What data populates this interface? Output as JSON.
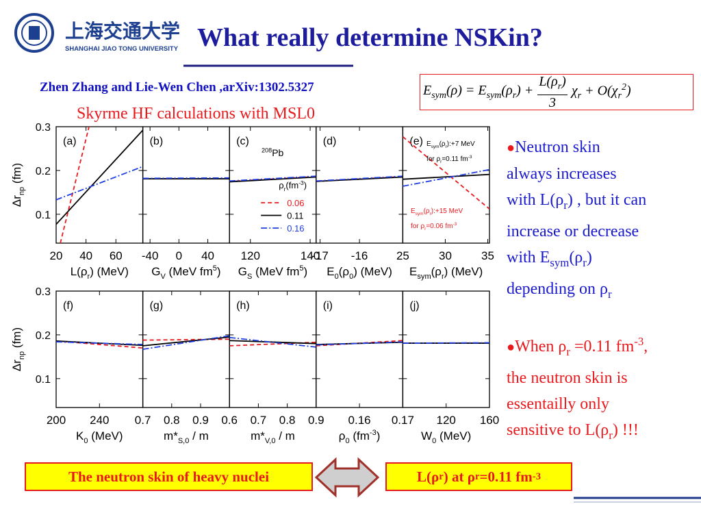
{
  "header": {
    "university_cn": "上海交通大学",
    "university_en": "SHANGHAI JIAO TONG UNIVERSITY",
    "title": "What really determine NSKin?"
  },
  "citation": "Zhen Zhang and Lie-Wen Chen ,arXiv:1302.5327",
  "equation": {
    "left": [
      {
        "text": "E"
      },
      {
        "text": "sym",
        "script": "sub"
      },
      {
        "text": "(ρ) = E"
      },
      {
        "text": "sym",
        "script": "sub"
      },
      {
        "text": "(ρ"
      },
      {
        "text": "r",
        "script": "sub"
      },
      {
        "text": ") +"
      }
    ],
    "fraction": {
      "numerator": [
        {
          "text": "L(ρ"
        },
        {
          "text": "r",
          "script": "sub"
        },
        {
          "text": ")"
        }
      ],
      "denominator": "3"
    },
    "right": [
      {
        "text": "χ"
      },
      {
        "text": "r",
        "script": "sub"
      },
      {
        "text": " + O(χ"
      },
      {
        "text": "r",
        "script": "sub"
      },
      {
        "text": "2",
        "script": "sup"
      },
      {
        "text": ")"
      }
    ]
  },
  "subtitle": "Skyrme HF calculations with MSL0",
  "chart_data": [
    {
      "type": "line",
      "panel_label": "(a)",
      "ylabel": [
        {
          "text": "Δr"
        },
        {
          "text": "np",
          "script": "sub"
        },
        {
          "text": " (fm)"
        }
      ],
      "xlabel": [
        {
          "text": "L(ρ"
        },
        {
          "text": "r",
          "script": "sub"
        },
        {
          "text": ") (MeV)"
        }
      ],
      "xlim": [
        20,
        78
      ],
      "xticks": [
        20,
        40,
        60
      ],
      "ylim": [
        0.034,
        0.3
      ],
      "yticks": [
        0.1,
        0.2,
        0.3
      ],
      "series": [
        {
          "color": "#e8191c",
          "style": "dashed",
          "x": [
            22.8,
            42
          ],
          "values": [
            0.034,
            0.3
          ]
        },
        {
          "color": "#000000",
          "style": "solid",
          "x": [
            20,
            78
          ],
          "values": [
            0.077,
            0.292
          ]
        },
        {
          "color": "#1f3fe0",
          "style": "dashdot",
          "x": [
            20,
            78
          ],
          "values": [
            0.133,
            0.209
          ]
        }
      ]
    },
    {
      "type": "line",
      "panel_label": "(b)",
      "xlabel": [
        {
          "text": "G"
        },
        {
          "text": "V",
          "script": "sub"
        },
        {
          "text": " (MeV fm"
        },
        {
          "text": "5",
          "script": "sup"
        },
        {
          "text": ")"
        }
      ],
      "xlim": [
        -50,
        70
      ],
      "xticks": [
        -40,
        0,
        40
      ],
      "ylim": [
        0.034,
        0.3
      ],
      "yticks": [
        0.1,
        0.2,
        0.3
      ],
      "series": [
        {
          "color": "#e8191c",
          "style": "dashed",
          "x": [
            -50,
            70
          ],
          "values": [
            0.181,
            0.181
          ]
        },
        {
          "color": "#000000",
          "style": "solid",
          "x": [
            -50,
            70
          ],
          "values": [
            0.181,
            0.181
          ]
        },
        {
          "color": "#1f3fe0",
          "style": "dashdot",
          "x": [
            -50,
            70
          ],
          "values": [
            0.182,
            0.183
          ]
        }
      ]
    },
    {
      "type": "line",
      "panel_label": "(c)",
      "xlabel": [
        {
          "text": "G"
        },
        {
          "text": "S",
          "script": "sub"
        },
        {
          "text": " (MeV fm"
        },
        {
          "text": "5",
          "script": "sup"
        },
        {
          "text": ")"
        }
      ],
      "xlim": [
        113,
        142
      ],
      "xticks": [
        120,
        140
      ],
      "ylim": [
        0.034,
        0.3
      ],
      "yticks": [
        0.1,
        0.2,
        0.3
      ],
      "legend_title": [
        {
          "text": "ρ"
        },
        {
          "text": "r",
          "script": "sub"
        },
        {
          "text": "(fm"
        },
        {
          "text": "-3",
          "script": "sup"
        },
        {
          "text": ")"
        }
      ],
      "annotations": [
        {
          "color": "#000000",
          "parts": [
            {
              "text": "208",
              "script": "sup"
            },
            {
              "text": "Pb"
            }
          ]
        }
      ],
      "series": [
        {
          "name": "0.06",
          "color": "#e8191c",
          "style": "dashed",
          "x": [
            113,
            142
          ],
          "values": [
            0.175,
            0.186
          ]
        },
        {
          "name": "0.11",
          "color": "#000000",
          "style": "solid",
          "x": [
            113,
            142
          ],
          "values": [
            0.174,
            0.185
          ]
        },
        {
          "name": "0.16",
          "color": "#1f3fe0",
          "style": "dashdot",
          "x": [
            113,
            142
          ],
          "values": [
            0.176,
            0.187
          ]
        }
      ]
    },
    {
      "type": "line",
      "panel_label": "(d)",
      "xlabel": [
        {
          "text": "E"
        },
        {
          "text": "0",
          "script": "sub"
        },
        {
          "text": "(ρ"
        },
        {
          "text": "0",
          "script": "sub"
        },
        {
          "text": ") (MeV)"
        }
      ],
      "xlim": [
        -17.1,
        -14.9
      ],
      "xticks": [
        -17,
        -16
      ],
      "ylim": [
        0.034,
        0.3
      ],
      "yticks": [
        0.1,
        0.2,
        0.3
      ],
      "series": [
        {
          "color": "#e8191c",
          "style": "dashed",
          "x": [
            -17.1,
            -14.9
          ],
          "values": [
            0.175,
            0.186
          ]
        },
        {
          "color": "#000000",
          "style": "solid",
          "x": [
            -17.1,
            -14.9
          ],
          "values": [
            0.175,
            0.185
          ]
        },
        {
          "color": "#1f3fe0",
          "style": "dashdot",
          "x": [
            -17.1,
            -14.9
          ],
          "values": [
            0.176,
            0.187
          ]
        }
      ]
    },
    {
      "type": "line",
      "panel_label": "(e)",
      "xlabel": [
        {
          "text": "E"
        },
        {
          "text": "sym",
          "script": "sub"
        },
        {
          "text": "(ρ"
        },
        {
          "text": "r",
          "script": "sub"
        },
        {
          "text": ") (MeV)"
        }
      ],
      "xlim": [
        25,
        35.2
      ],
      "xticks": [
        25,
        30,
        35
      ],
      "ylim": [
        0.034,
        0.3
      ],
      "yticks": [
        0.1,
        0.2,
        0.3
      ],
      "annotations": [
        {
          "color": "#000000",
          "parts": [
            {
              "text": "E"
            },
            {
              "text": "sym",
              "script": "sub"
            },
            {
              "text": "(ρ"
            },
            {
              "text": "r",
              "script": "sub"
            },
            {
              "text": "):+7 MeV"
            }
          ]
        },
        {
          "color": "#000000",
          "parts": [
            {
              "text": "for ρ"
            },
            {
              "text": "r",
              "script": "sub"
            },
            {
              "text": "=0.11 fm"
            },
            {
              "text": "-3",
              "script": "sup"
            }
          ]
        },
        {
          "color": "#e8191c",
          "parts": [
            {
              "text": "E"
            },
            {
              "text": "sym",
              "script": "sub"
            },
            {
              "text": "(ρ"
            },
            {
              "text": "r",
              "script": "sub"
            },
            {
              "text": "):+15 MeV"
            }
          ]
        },
        {
          "color": "#e8191c",
          "parts": [
            {
              "text": "for ρ"
            },
            {
              "text": "r",
              "script": "sub"
            },
            {
              "text": "=0.06 fm"
            },
            {
              "text": "-3",
              "script": "sup"
            }
          ]
        }
      ],
      "series": [
        {
          "color": "#e8191c",
          "style": "dashed",
          "x": [
            25,
            35.2
          ],
          "values": [
            0.277,
            0.112
          ]
        },
        {
          "color": "#000000",
          "style": "solid",
          "x": [
            25,
            35.2
          ],
          "values": [
            0.18,
            0.191
          ]
        },
        {
          "color": "#1f3fe0",
          "style": "dashdot",
          "x": [
            25,
            35.2
          ],
          "values": [
            0.164,
            0.202
          ]
        }
      ]
    },
    {
      "type": "line",
      "panel_label": "(f)",
      "ylabel": [
        {
          "text": "Δr"
        },
        {
          "text": "np",
          "script": "sub"
        },
        {
          "text": " (fm)"
        }
      ],
      "xlabel": [
        {
          "text": "K"
        },
        {
          "text": "0",
          "script": "sub"
        },
        {
          "text": " (MeV)"
        }
      ],
      "xlim": [
        200,
        280
      ],
      "xticks": [
        200,
        240
      ],
      "ylim": [
        0.034,
        0.3
      ],
      "yticks": [
        0.1,
        0.2,
        0.3
      ],
      "series": [
        {
          "color": "#e8191c",
          "style": "dashed",
          "x": [
            200,
            280
          ],
          "values": [
            0.186,
            0.17
          ]
        },
        {
          "color": "#000000",
          "style": "solid",
          "x": [
            200,
            280
          ],
          "values": [
            0.186,
            0.176
          ]
        },
        {
          "color": "#1f3fe0",
          "style": "dashdot",
          "x": [
            200,
            280
          ],
          "values": [
            0.184,
            0.178
          ]
        }
      ]
    },
    {
      "type": "line",
      "panel_label": "(g)",
      "xlabel": [
        {
          "text": "m*"
        },
        {
          "text": "S,0",
          "script": "sub"
        },
        {
          "text": " / m"
        }
      ],
      "xlim": [
        0.7,
        1.0
      ],
      "xticks": [
        0.7,
        0.8,
        0.9
      ],
      "ylim": [
        0.034,
        0.3
      ],
      "yticks": [
        0.1,
        0.2,
        0.3
      ],
      "series": [
        {
          "color": "#e8191c",
          "style": "dashed",
          "x": [
            0.7,
            1.0
          ],
          "values": [
            0.188,
            0.19
          ]
        },
        {
          "color": "#000000",
          "style": "solid",
          "x": [
            0.7,
            1.0
          ],
          "values": [
            0.175,
            0.195
          ]
        },
        {
          "color": "#1f3fe0",
          "style": "dashdot",
          "x": [
            0.7,
            1.0
          ],
          "values": [
            0.167,
            0.198
          ]
        }
      ]
    },
    {
      "type": "line",
      "panel_label": "(h)",
      "xlabel": [
        {
          "text": "m*"
        },
        {
          "text": "V,0",
          "script": "sub"
        },
        {
          "text": " / m"
        }
      ],
      "xlim": [
        0.6,
        0.9
      ],
      "xticks": [
        0.6,
        0.7,
        0.8,
        0.9
      ],
      "ylim": [
        0.034,
        0.3
      ],
      "yticks": [
        0.1,
        0.2,
        0.3
      ],
      "series": [
        {
          "color": "#e8191c",
          "style": "dashed",
          "x": [
            0.6,
            0.9
          ],
          "values": [
            0.175,
            0.183
          ]
        },
        {
          "color": "#000000",
          "style": "solid",
          "x": [
            0.6,
            0.9
          ],
          "values": [
            0.187,
            0.18
          ]
        },
        {
          "color": "#1f3fe0",
          "style": "dashdot",
          "x": [
            0.6,
            0.9
          ],
          "values": [
            0.194,
            0.172
          ]
        }
      ]
    },
    {
      "type": "line",
      "panel_label": "(i)",
      "xlabel": [
        {
          "text": "ρ"
        },
        {
          "text": "0",
          "script": "sub"
        },
        {
          "text": " (fm"
        },
        {
          "text": "-3",
          "script": "sup"
        },
        {
          "text": ")"
        }
      ],
      "xlim": [
        0.15,
        0.17
      ],
      "xticks": [
        0.16,
        0.17
      ],
      "ylim": [
        0.034,
        0.3
      ],
      "yticks": [
        0.1,
        0.2,
        0.3
      ],
      "series": [
        {
          "color": "#e8191c",
          "style": "dashed",
          "x": [
            0.15,
            0.17
          ],
          "values": [
            0.175,
            0.187
          ]
        },
        {
          "color": "#000000",
          "style": "solid",
          "x": [
            0.15,
            0.17
          ],
          "values": [
            0.178,
            0.183
          ]
        },
        {
          "color": "#1f3fe0",
          "style": "dashdot",
          "x": [
            0.15,
            0.17
          ],
          "values": [
            0.177,
            0.184
          ]
        }
      ]
    },
    {
      "type": "line",
      "panel_label": "(j)",
      "xlabel": [
        {
          "text": "W"
        },
        {
          "text": "0",
          "script": "sub"
        },
        {
          "text": " (MeV)"
        }
      ],
      "xlim": [
        80,
        160
      ],
      "xticks": [
        120,
        160
      ],
      "ylim": [
        0.034,
        0.3
      ],
      "yticks": [
        0.1,
        0.2,
        0.3
      ],
      "series": [
        {
          "color": "#e8191c",
          "style": "dashed",
          "x": [
            80,
            160
          ],
          "values": [
            0.181,
            0.181
          ]
        },
        {
          "color": "#000000",
          "style": "solid",
          "x": [
            80,
            160
          ],
          "values": [
            0.181,
            0.181
          ]
        },
        {
          "color": "#1f3fe0",
          "style": "dashdot",
          "x": [
            80,
            160
          ],
          "values": [
            0.181,
            0.182
          ]
        }
      ]
    }
  ],
  "bullets": [
    {
      "bullet": "●",
      "lines": [
        [
          {
            "text": "Neutron skin"
          }
        ],
        [
          {
            "text": "always increases"
          }
        ],
        [
          {
            "text": "with L(ρ"
          },
          {
            "text": "r",
            "script": "sub"
          },
          {
            "text": ") , but it can"
          }
        ],
        [
          {
            "text": "increase or decrease"
          }
        ],
        [
          {
            "text": "with E"
          },
          {
            "text": "sym",
            "script": "sub"
          },
          {
            "text": "(ρ"
          },
          {
            "text": "r",
            "script": "sub"
          },
          {
            "text": ")"
          }
        ],
        [
          {
            "text": "depending on ρ"
          },
          {
            "text": "r",
            "script": "sub"
          }
        ]
      ]
    },
    {
      "bullet": "●",
      "lines": [
        [
          {
            "text": "When ρ"
          },
          {
            "text": "r",
            "script": "sub"
          },
          {
            "text": " =0.11 fm"
          },
          {
            "text": "-3",
            "script": "sup"
          },
          {
            "text": ","
          }
        ],
        [
          {
            "text": "the neutron skin is"
          }
        ],
        [
          {
            "text": "essentailly only"
          }
        ],
        [
          {
            "text": "sensitive to L(ρ"
          },
          {
            "text": "r",
            "script": "sub"
          },
          {
            "text": ") !!!"
          }
        ]
      ]
    }
  ],
  "boxes": {
    "left": [
      {
        "text": "The neutron skin of heavy nuclei"
      }
    ],
    "right": [
      {
        "text": "L(ρ"
      },
      {
        "text": "r",
        "script": "sub"
      },
      {
        "text": ") at ρ"
      },
      {
        "text": "r",
        "script": "sub"
      },
      {
        "text": " =0.11 fm"
      },
      {
        "text": "-3",
        "script": "sup"
      }
    ]
  }
}
